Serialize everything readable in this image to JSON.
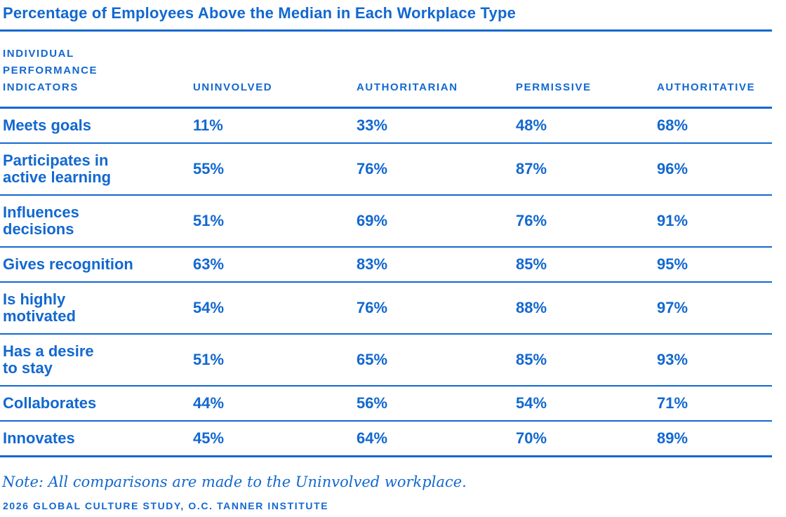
{
  "title": "Percentage of Employees Above the Median in Each Workplace Type",
  "note": "Note: All comparisons are made to the Uninvolved workplace.",
  "source": "2026 GLOBAL CULTURE STUDY, O.C. TANNER INSTITUTE",
  "colors": {
    "accent": "#1268d0"
  },
  "chart_data": {
    "type": "table",
    "title": "Percentage of Employees Above the Median in Each Workplace Type",
    "row_header": "INDIVIDUAL\nPERFORMANCE\nINDICATORS",
    "columns": [
      "UNINVOLVED",
      "AUTHORITARIAN",
      "PERMISSIVE",
      "AUTHORITATIVE"
    ],
    "rows": [
      {
        "indicator": "Meets goals",
        "values": [
          "11%",
          "33%",
          "48%",
          "68%"
        ]
      },
      {
        "indicator": "Participates in\nactive learning",
        "values": [
          "55%",
          "76%",
          "87%",
          "96%"
        ]
      },
      {
        "indicator": "Influences\ndecisions",
        "values": [
          "51%",
          "69%",
          "76%",
          "91%"
        ]
      },
      {
        "indicator": "Gives recognition",
        "values": [
          "63%",
          "83%",
          "85%",
          "95%"
        ]
      },
      {
        "indicator": "Is highly\nmotivated",
        "values": [
          "54%",
          "76%",
          "88%",
          "97%"
        ]
      },
      {
        "indicator": "Has a desire\nto stay",
        "values": [
          "51%",
          "65%",
          "85%",
          "93%"
        ]
      },
      {
        "indicator": "Collaborates",
        "values": [
          "44%",
          "56%",
          "54%",
          "71%"
        ]
      },
      {
        "indicator": "Innovates",
        "values": [
          "45%",
          "64%",
          "70%",
          "89%"
        ]
      }
    ]
  }
}
